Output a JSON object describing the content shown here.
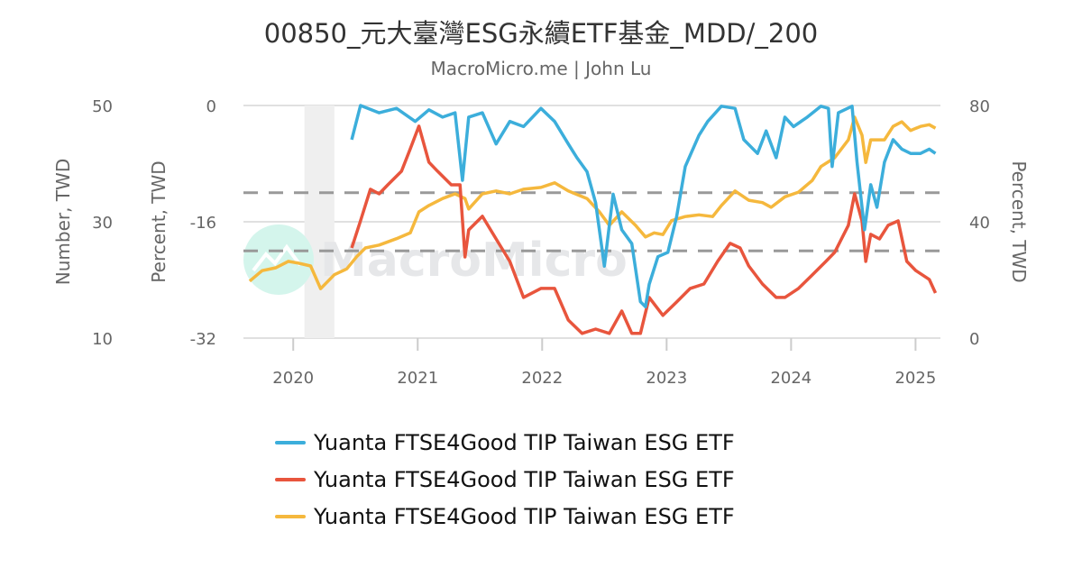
{
  "title": "00850_元大臺灣ESG永續ETF基金_MDD/_200",
  "subtitle": "MacroMicro.me | John Lu",
  "watermark": "MacroMicro",
  "chart_data": {
    "type": "line",
    "xlim": [
      2019.6,
      2025.2
    ],
    "x_ticks": [
      "2020",
      "2021",
      "2022",
      "2023",
      "2024",
      "2025"
    ],
    "axes": {
      "left_outer": {
        "label": "Number, TWD",
        "ylim": [
          10,
          50
        ],
        "ticks": [
          "50",
          "30",
          "10"
        ]
      },
      "left_inner": {
        "label": "Percent, TWD",
        "ylim": [
          -32,
          0
        ],
        "ticks": [
          "0",
          "-16",
          "-32"
        ]
      },
      "right": {
        "label": "Percent, TWD",
        "ylim": [
          0,
          80
        ],
        "ticks": [
          "80",
          "40",
          "0"
        ]
      }
    },
    "grid": true,
    "reference_lines_right_axis": [
      50,
      30
    ],
    "shaded_period": [
      2020.09,
      2020.33
    ],
    "legend_position": "bottom",
    "series": [
      {
        "name": "Yuanta FTSE4Good TIP Taiwan ESG ETF",
        "color": "#3caedb",
        "axis": "left_inner",
        "x": [
          2020.47,
          2020.54,
          2020.69,
          2020.83,
          2020.98,
          2021.09,
          2021.2,
          2021.3,
          2021.36,
          2021.41,
          2021.52,
          2021.63,
          2021.74,
          2021.85,
          2021.99,
          2022.1,
          2022.21,
          2022.28,
          2022.36,
          2022.43,
          2022.5,
          2022.57,
          2022.64,
          2022.72,
          2022.79,
          2022.83,
          2022.86,
          2022.93,
          2023.01,
          2023.08,
          2023.15,
          2023.26,
          2023.33,
          2023.44,
          2023.55,
          2023.62,
          2023.73,
          2023.8,
          2023.88,
          2023.95,
          2024.02,
          2024.13,
          2024.24,
          2024.3,
          2024.33,
          2024.38,
          2024.49,
          2024.53,
          2024.59,
          2024.64,
          2024.69,
          2024.75,
          2024.82,
          2024.89,
          2024.96,
          2025.04,
          2025.11,
          2025.16
        ],
        "y": [
          -4.7,
          0,
          -1.0,
          -0.4,
          -2.2,
          -0.6,
          -1.6,
          -1.0,
          -10.3,
          -1.6,
          -1.0,
          -5.3,
          -2.2,
          -2.9,
          -0.4,
          -2.2,
          -5.3,
          -7.2,
          -9.1,
          -13.4,
          -22.1,
          -12.2,
          -17.1,
          -19.0,
          -27.0,
          -27.7,
          -24.6,
          -20.8,
          -20.2,
          -15.3,
          -8.4,
          -4.1,
          -2.2,
          -0.1,
          -0.4,
          -4.7,
          -6.6,
          -3.5,
          -7.2,
          -1.6,
          -2.9,
          -1.6,
          -0.1,
          -0.4,
          -8.4,
          -1.0,
          -0.1,
          -7.8,
          -17.1,
          -10.9,
          -14.0,
          -7.8,
          -4.7,
          -6.0,
          -6.6,
          -6.6,
          -6.0,
          -6.6
        ]
      },
      {
        "name": "Yuanta FTSE4Good TIP Taiwan ESG ETF",
        "color": "#e8553d",
        "axis": "right",
        "x": [
          2020.47,
          2020.54,
          2020.62,
          2020.69,
          2020.76,
          2020.87,
          2020.94,
          2021.01,
          2021.09,
          2021.16,
          2021.27,
          2021.34,
          2021.38,
          2021.41,
          2021.52,
          2021.63,
          2021.74,
          2021.85,
          2021.99,
          2022.1,
          2022.21,
          2022.32,
          2022.43,
          2022.54,
          2022.64,
          2022.72,
          2022.79,
          2022.86,
          2022.97,
          2023.08,
          2023.19,
          2023.3,
          2023.41,
          2023.51,
          2023.59,
          2023.66,
          2023.77,
          2023.88,
          2023.95,
          2024.06,
          2024.17,
          2024.28,
          2024.35,
          2024.46,
          2024.51,
          2024.57,
          2024.6,
          2024.64,
          2024.71,
          2024.78,
          2024.86,
          2024.93,
          2025.0,
          2025.11,
          2025.16
        ],
        "y": [
          31.0,
          40.3,
          51.2,
          49.6,
          52.7,
          57.4,
          65.1,
          72.9,
          60.5,
          57.4,
          52.7,
          52.7,
          27.9,
          37.2,
          41.9,
          34.1,
          26.4,
          14.0,
          17.1,
          17.1,
          6.2,
          1.6,
          3.1,
          1.6,
          9.3,
          1.6,
          1.6,
          14.0,
          7.8,
          12.4,
          17.1,
          18.6,
          26.4,
          32.6,
          31.0,
          24.8,
          18.6,
          14.0,
          14.0,
          17.1,
          21.7,
          26.4,
          29.5,
          38.8,
          49.6,
          40.3,
          26.4,
          35.7,
          34.1,
          38.8,
          40.3,
          26.4,
          23.3,
          20.2,
          15.5
        ]
      },
      {
        "name": "Yuanta FTSE4Good TIP Taiwan ESG ETF",
        "color": "#f5b83d",
        "axis": "left_outer",
        "x": [
          2019.65,
          2019.75,
          2019.86,
          2019.96,
          2020.04,
          2020.14,
          2020.22,
          2020.33,
          2020.43,
          2020.51,
          2020.58,
          2020.69,
          2020.83,
          2020.94,
          2021.01,
          2021.09,
          2021.2,
          2021.3,
          2021.38,
          2021.41,
          2021.52,
          2021.63,
          2021.74,
          2021.85,
          2021.99,
          2022.1,
          2022.21,
          2022.36,
          2022.46,
          2022.54,
          2022.64,
          2022.75,
          2022.83,
          2022.9,
          2022.97,
          2023.04,
          2023.15,
          2023.26,
          2023.37,
          2023.44,
          2023.55,
          2023.66,
          2023.77,
          2023.84,
          2023.95,
          2024.06,
          2024.17,
          2024.24,
          2024.35,
          2024.46,
          2024.51,
          2024.57,
          2024.6,
          2024.64,
          2024.75,
          2024.82,
          2024.89,
          2024.96,
          2025.04,
          2025.11,
          2025.16
        ],
        "y": [
          19.8,
          21.6,
          22.1,
          23.2,
          22.9,
          22.4,
          18.5,
          20.9,
          21.9,
          24.0,
          25.5,
          26.0,
          27.1,
          28.1,
          31.7,
          32.8,
          34.0,
          34.8,
          34.0,
          32.2,
          34.8,
          35.3,
          34.8,
          35.6,
          35.9,
          36.7,
          35.3,
          34.0,
          31.7,
          29.4,
          31.7,
          29.4,
          27.4,
          28.1,
          27.8,
          30.2,
          30.9,
          31.2,
          30.9,
          32.8,
          35.3,
          33.7,
          33.3,
          32.5,
          34.3,
          35.1,
          37.1,
          39.5,
          41.0,
          44.1,
          48.0,
          44.9,
          40.2,
          44.1,
          44.1,
          46.4,
          47.2,
          45.7,
          46.4,
          46.7,
          46.1
        ]
      }
    ]
  },
  "legend": [
    {
      "label": "Yuanta FTSE4Good TIP Taiwan ESG ETF",
      "color": "#3caedb"
    },
    {
      "label": "Yuanta FTSE4Good TIP Taiwan ESG ETF",
      "color": "#e8553d"
    },
    {
      "label": "Yuanta FTSE4Good TIP Taiwan ESG ETF",
      "color": "#f5b83d"
    }
  ]
}
